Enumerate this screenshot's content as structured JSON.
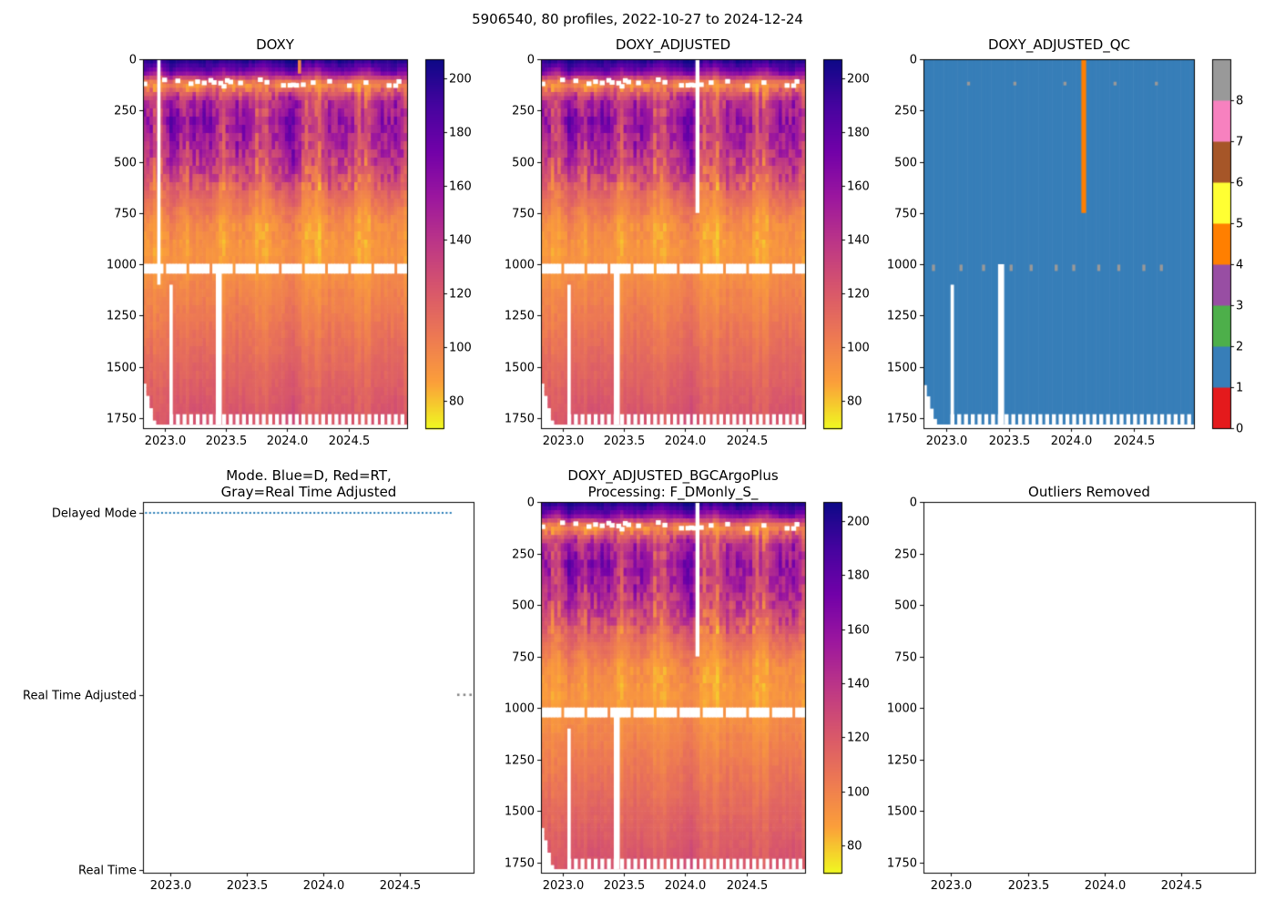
{
  "figure": {
    "suptitle": "5906540, 80 profiles, 2022-10-27 to 2024-12-24",
    "background": "#ffffff"
  },
  "colors": {
    "heatmap_colormap": "plasma_r",
    "qc_palette": [
      "#e41a1c",
      "#377eb8",
      "#4daf4a",
      "#984ea3",
      "#ff7f00",
      "#ffff33",
      "#a65628",
      "#f781bf",
      "#999999"
    ],
    "mode_delayed": "#1f77b4",
    "mode_rta": "#7f7f7f",
    "missing": "#ffffff",
    "axis": "#000000"
  },
  "oxygen_field": {
    "depth_bins": [
      0,
      60,
      120,
      200,
      300,
      400,
      500,
      650,
      800,
      950,
      1100,
      1300,
      1500,
      1750
    ],
    "time_bins": [
      2022.85,
      2022.95,
      2023.05,
      2023.15,
      2023.25,
      2023.35,
      2023.45,
      2023.55,
      2023.65,
      2023.75,
      2023.85,
      2023.95,
      2024.05,
      2024.15,
      2024.25,
      2024.35,
      2024.45,
      2024.55,
      2024.65,
      2024.75,
      2024.85,
      2024.95
    ],
    "values": [
      [
        205,
        200,
        210,
        196,
        205,
        200,
        198,
        202,
        206,
        200,
        195,
        203,
        208,
        200,
        197,
        205,
        210,
        202,
        198,
        204,
        200,
        206
      ],
      [
        180,
        150,
        190,
        165,
        175,
        185,
        160,
        170,
        180,
        155,
        165,
        175,
        185,
        160,
        150,
        170,
        180,
        165,
        155,
        175,
        185,
        170
      ],
      [
        95,
        88,
        100,
        92,
        85,
        98,
        105,
        90,
        86,
        95,
        102,
        88,
        92,
        100,
        85,
        96,
        104,
        90,
        87,
        98,
        93,
        101
      ],
      [
        150,
        120,
        165,
        135,
        145,
        158,
        125,
        140,
        152,
        118,
        130,
        148,
        160,
        126,
        115,
        142,
        155,
        132,
        122,
        146,
        150,
        138
      ],
      [
        165,
        130,
        175,
        145,
        160,
        170,
        135,
        150,
        165,
        128,
        140,
        158,
        172,
        136,
        125,
        152,
        168,
        142,
        130,
        156,
        162,
        148
      ],
      [
        155,
        125,
        170,
        140,
        150,
        165,
        130,
        145,
        158,
        122,
        135,
        152,
        168,
        130,
        120,
        148,
        160,
        138,
        126,
        150,
        156,
        142
      ],
      [
        140,
        115,
        155,
        128,
        138,
        150,
        120,
        132,
        145,
        112,
        125,
        140,
        155,
        120,
        110,
        136,
        148,
        126,
        116,
        138,
        144,
        130
      ],
      [
        115,
        100,
        125,
        108,
        115,
        122,
        102,
        110,
        118,
        98,
        105,
        115,
        125,
        102,
        95,
        112,
        120,
        106,
        100,
        114,
        118,
        108
      ],
      [
        95,
        88,
        102,
        92,
        96,
        100,
        88,
        93,
        98,
        86,
        90,
        96,
        102,
        88,
        84,
        94,
        100,
        90,
        87,
        95,
        98,
        92
      ],
      [
        90,
        86,
        95,
        89,
        92,
        94,
        86,
        90,
        93,
        85,
        88,
        92,
        96,
        86,
        83,
        90,
        94,
        88,
        85,
        91,
        93,
        89
      ],
      [
        97,
        93,
        100,
        95,
        98,
        100,
        93,
        96,
        99,
        92,
        95,
        98,
        102,
        93,
        91,
        97,
        100,
        95,
        92,
        97,
        99,
        96
      ],
      [
        105,
        102,
        108,
        104,
        106,
        108,
        102,
        105,
        107,
        101,
        103,
        106,
        110,
        102,
        100,
        105,
        108,
        103,
        101,
        106,
        107,
        104
      ],
      [
        113,
        110,
        116,
        112,
        114,
        116,
        110,
        113,
        115,
        109,
        112,
        114,
        118,
        110,
        108,
        113,
        116,
        112,
        110,
        114,
        115,
        112
      ],
      [
        122,
        119,
        125,
        121,
        123,
        125,
        119,
        122,
        124,
        118,
        120,
        123,
        127,
        119,
        117,
        122,
        125,
        121,
        119,
        123,
        124,
        121
      ]
    ]
  },
  "chart_data": [
    {
      "type": "heatmap",
      "title": "DOXY",
      "xlim": [
        2022.82,
        2024.98
      ],
      "ylim": [
        1800,
        0
      ],
      "n_profiles": 80,
      "xticks": [
        "2023.0",
        "2023.5",
        "2024.0",
        "2024.5"
      ],
      "yticks": [
        0,
        250,
        500,
        750,
        1000,
        1250,
        1500,
        1750
      ],
      "colorbar": {
        "vmin": 70,
        "vmax": 207,
        "ticks": [
          80,
          100,
          120,
          140,
          160,
          180,
          200
        ],
        "colormap": "plasma_r"
      },
      "missing": {
        "vertical_gaps": [
          {
            "time": 2022.95,
            "depth": [
              0,
              1100
            ],
            "wcols": 1
          },
          {
            "time": 2023.05,
            "depth": [
              1100,
              1782
            ],
            "wcols": 1
          },
          {
            "time": 2023.44,
            "depth": [
              1000,
              1782
            ],
            "wcols": 1.8
          }
        ],
        "dashed_line_depth_range": [
          998,
          1046
        ],
        "shallow_dashes_depth_range": [
          88,
          130
        ],
        "bottom_alternating_gap_depth": 1732,
        "first_profiles_max_depth": [
          1590,
          1645,
          1705,
          1755
        ],
        "default_max_depth": 1782
      },
      "surface_low_oxygen_profile": {
        "time": 2024.1,
        "depth": [
          0,
          70
        ],
        "value": 98
      }
    },
    {
      "type": "heatmap",
      "title": "DOXY_ADJUSTED",
      "xlim": [
        2022.82,
        2024.98
      ],
      "ylim": [
        1800,
        0
      ],
      "n_profiles": 80,
      "xticks": [
        "2023.0",
        "2023.5",
        "2024.0",
        "2024.5"
      ],
      "yticks": [
        0,
        250,
        500,
        750,
        1000,
        1250,
        1500,
        1750
      ],
      "colorbar": {
        "vmin": 70,
        "vmax": 207,
        "ticks": [
          80,
          100,
          120,
          140,
          160,
          180,
          200
        ],
        "colormap": "plasma_r"
      },
      "missing": {
        "vertical_gaps": [
          {
            "time": 2023.05,
            "depth": [
              1100,
              1782
            ],
            "wcols": 1
          },
          {
            "time": 2023.44,
            "depth": [
              1000,
              1782
            ],
            "wcols": 1.8
          },
          {
            "time": 2024.1,
            "depth": [
              0,
              750
            ],
            "wcols": 1.2
          }
        ],
        "dashed_line_depth_range": [
          998,
          1046
        ],
        "shallow_dashes_depth_range": [
          88,
          130
        ],
        "bottom_alternating_gap_depth": 1732,
        "first_profiles_max_depth": [
          1590,
          1645,
          1705,
          1755
        ],
        "default_max_depth": 1782
      }
    },
    {
      "type": "heatmap-categorical",
      "title": "DOXY_ADJUSTED_QC",
      "xlim": [
        2022.82,
        2024.98
      ],
      "ylim": [
        1800,
        0
      ],
      "xticks": [
        "2023.0",
        "2023.5",
        "2024.0",
        "2024.5"
      ],
      "yticks": [
        0,
        250,
        500,
        750,
        1000,
        1250,
        1500,
        1750
      ],
      "colorbar": {
        "ticks": [
          0,
          1,
          2,
          3,
          4,
          5,
          6,
          7,
          8
        ],
        "palette": "Set1",
        "n_bands": 9
      },
      "qc_flags": {
        "dominant_qc": 1,
        "flagged_profile": {
          "time": 2024.1,
          "depth": [
            0,
            750
          ],
          "qc": 4
        },
        "qc8_depth": 1010,
        "qc8_times": [
          2022.9,
          2023.12,
          2023.3,
          2023.52,
          2023.68,
          2023.88,
          2024.02,
          2024.22,
          2024.38,
          2024.58,
          2024.72
        ],
        "shallow_speck_depth": 115,
        "shallow_speck_times": [
          2023.18,
          2023.55,
          2023.95,
          2024.35,
          2024.68
        ]
      },
      "missing": {
        "vertical_gaps": [
          {
            "time": 2023.05,
            "depth": [
              1100,
              1782
            ],
            "wcols": 1
          },
          {
            "time": 2023.44,
            "depth": [
              1000,
              1782
            ],
            "wcols": 1.8
          }
        ],
        "bottom_alternating_gap_depth": 1732,
        "first_profiles_max_depth": [
          1590,
          1645,
          1705,
          1755
        ],
        "default_max_depth": 1782
      }
    },
    {
      "type": "scatter",
      "title_line1": "Mode. Blue=D, Red=RT,",
      "title_line2": "Gray=Real Time Adjusted",
      "xticks": [
        "2023.0",
        "2023.5",
        "2024.0",
        "2024.5"
      ],
      "categories": [
        "Delayed Mode",
        "Real Time Adjusted",
        "Real Time"
      ],
      "series": [
        {
          "name": "Delayed Mode",
          "color_meaning": "blue",
          "x_start": 2022.84,
          "x_end": 2024.83,
          "count": 77
        },
        {
          "name": "Real Time Adjusted",
          "color_meaning": "gray",
          "x": [
            2024.88,
            2024.92,
            2024.96
          ],
          "count": 3
        },
        {
          "name": "Real Time",
          "color_meaning": "red",
          "x": [],
          "count": 0
        }
      ]
    },
    {
      "type": "heatmap",
      "title_line1": "DOXY_ADJUSTED_BGCArgoPlus",
      "title_line2": "Processing: F_DMonly_S_",
      "xlim": [
        2022.82,
        2024.98
      ],
      "ylim": [
        1800,
        0
      ],
      "n_profiles": 80,
      "xticks": [
        "2023.0",
        "2023.5",
        "2024.0",
        "2024.5"
      ],
      "yticks": [
        0,
        250,
        500,
        750,
        1000,
        1250,
        1500,
        1750
      ],
      "colorbar": {
        "vmin": 70,
        "vmax": 207,
        "ticks": [
          80,
          100,
          120,
          140,
          160,
          180,
          200
        ],
        "colormap": "plasma_r"
      },
      "missing": {
        "vertical_gaps": [
          {
            "time": 2023.05,
            "depth": [
              1100,
              1782
            ],
            "wcols": 1
          },
          {
            "time": 2023.44,
            "depth": [
              1000,
              1782
            ],
            "wcols": 1.8
          },
          {
            "time": 2024.1,
            "depth": [
              0,
              750
            ],
            "wcols": 1.2
          }
        ],
        "dashed_line_depth_range": [
          998,
          1046
        ],
        "shallow_dashes_depth_range": [
          88,
          130
        ],
        "bottom_alternating_gap_depth": 1732,
        "first_profiles_max_depth": [
          1590,
          1645,
          1705,
          1755
        ],
        "default_max_depth": 1782
      }
    },
    {
      "type": "empty",
      "title": "Outliers Removed",
      "xticks": [
        "2023.0",
        "2023.5",
        "2024.0",
        "2024.5"
      ],
      "yticks": [
        0,
        250,
        500,
        750,
        1000,
        1250,
        1500,
        1750
      ]
    }
  ]
}
